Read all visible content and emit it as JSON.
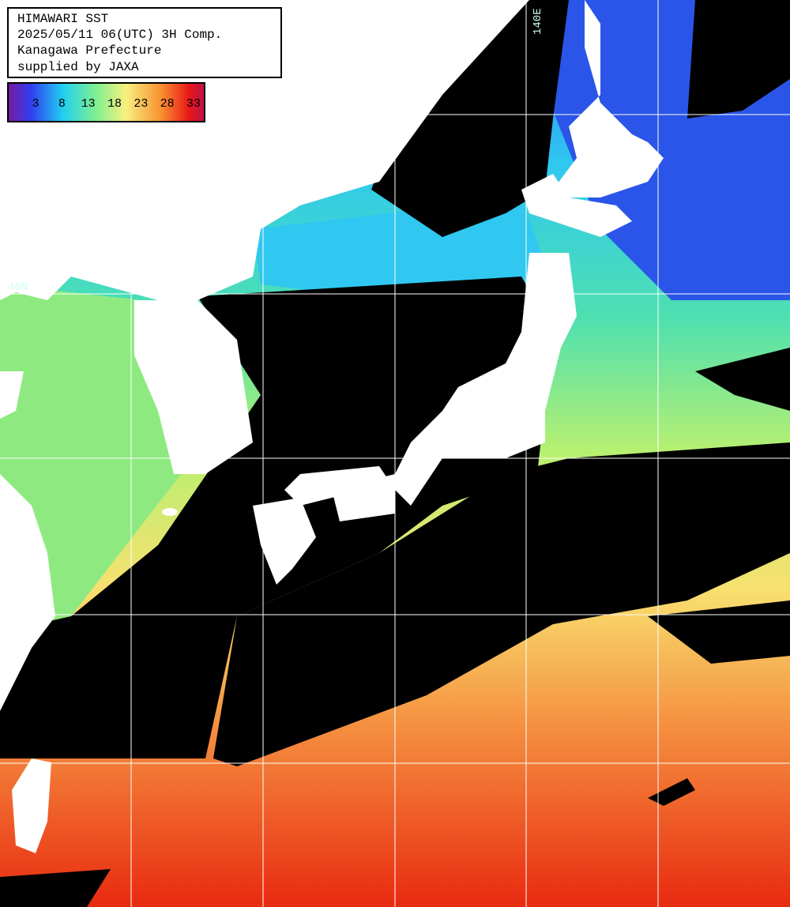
{
  "header": {
    "lines": [
      "HIMAWARI SST",
      "2025/05/11 06(UTC) 3H Comp.",
      "Kanagawa Prefecture",
      "supplied by JAXA"
    ]
  },
  "colorbar": {
    "ticks": [
      3,
      8,
      13,
      18,
      23,
      28,
      33
    ]
  },
  "grid_labels": {
    "longitude": "140E",
    "latitude": "40N"
  }
}
